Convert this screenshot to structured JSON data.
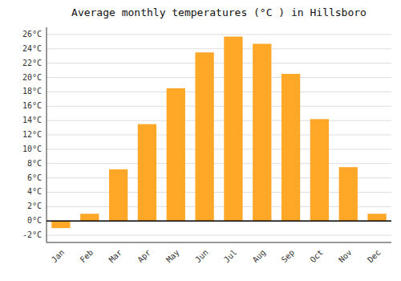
{
  "chart_data": {
    "type": "bar",
    "title": "Average monthly temperatures (°C ) in Hillsboro",
    "categories": [
      "Jan",
      "Feb",
      "Mar",
      "Apr",
      "May",
      "Jun",
      "Jul",
      "Aug",
      "Sep",
      "Oct",
      "Nov",
      "Dec"
    ],
    "values": [
      -1.0,
      1.0,
      7.2,
      13.5,
      18.5,
      23.5,
      25.7,
      24.7,
      20.5,
      14.2,
      7.5,
      1.0
    ],
    "color": "#FFA726",
    "ylim": [
      -3,
      27
    ],
    "yticks": [
      {
        "value": -2,
        "label": "-2°C"
      },
      {
        "value": 0,
        "label": "0°C"
      },
      {
        "value": 2,
        "label": "2°C"
      },
      {
        "value": 4,
        "label": "4°C"
      },
      {
        "value": 6,
        "label": "6°C"
      },
      {
        "value": 8,
        "label": "8°C"
      },
      {
        "value": 10,
        "label": "10°C"
      },
      {
        "value": 12,
        "label": "12°C"
      },
      {
        "value": 14,
        "label": "14°C"
      },
      {
        "value": 16,
        "label": "16°C"
      },
      {
        "value": 18,
        "label": "18°C"
      },
      {
        "value": 20,
        "label": "20°C"
      },
      {
        "value": 22,
        "label": "22°C"
      },
      {
        "value": 24,
        "label": "24°C"
      },
      {
        "value": 26,
        "label": "26°C"
      }
    ],
    "grid": true
  }
}
